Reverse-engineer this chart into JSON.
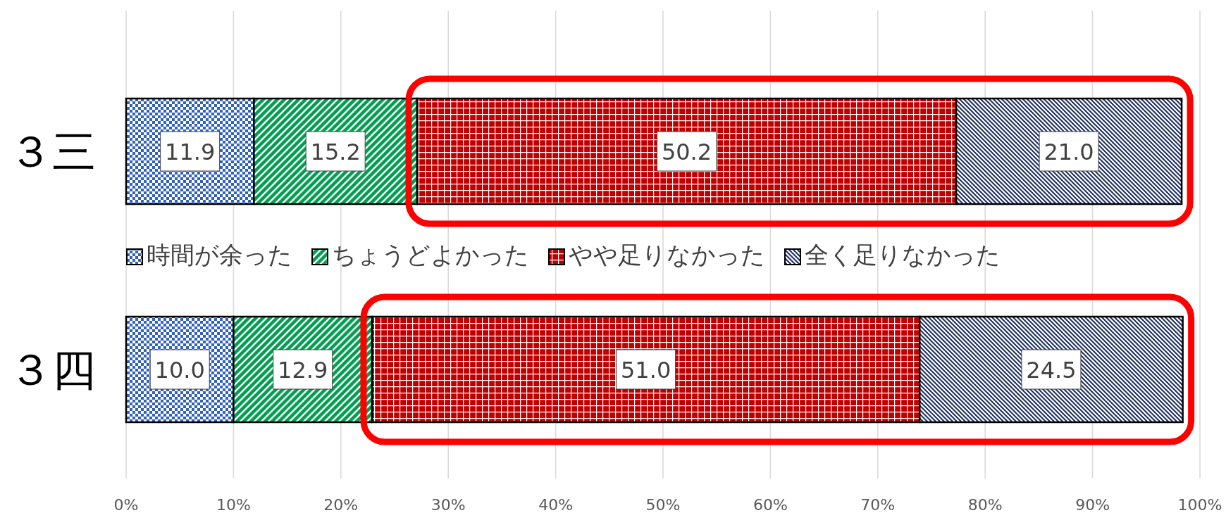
{
  "chart_data": {
    "type": "bar",
    "orientation": "horizontal",
    "stacked": true,
    "categories": [
      "３三",
      "３四"
    ],
    "series": [
      {
        "name": "時間が余った",
        "color": "#3060c0",
        "values": [
          11.9,
          10.0
        ],
        "value_labels": [
          "11.9",
          "10.0"
        ]
      },
      {
        "name": "ちょうどよかった",
        "color": "#00a050",
        "values": [
          15.2,
          12.9
        ],
        "value_labels": [
          "15.2",
          "12.9"
        ]
      },
      {
        "name": "やや足りなかった",
        "color": "#c00000",
        "values": [
          50.2,
          51.0
        ],
        "value_labels": [
          "50.2",
          "51.0"
        ]
      },
      {
        "name": "全く足りなかった",
        "color": "#1f3060",
        "values": [
          21.0,
          24.5
        ],
        "value_labels": [
          "21.0",
          "24.5"
        ]
      }
    ],
    "xlim": [
      0,
      100
    ],
    "xticks": [
      {
        "value": 0,
        "label": "0%"
      },
      {
        "value": 10,
        "label": "10%"
      },
      {
        "value": 20,
        "label": "20%"
      },
      {
        "value": 30,
        "label": "30%"
      },
      {
        "value": 40,
        "label": "40%"
      },
      {
        "value": 50,
        "label": "50%"
      },
      {
        "value": 60,
        "label": "60%"
      },
      {
        "value": 70,
        "label": "70%"
      },
      {
        "value": 80,
        "label": "80%"
      },
      {
        "value": 90,
        "label": "90%"
      },
      {
        "value": 100,
        "label": "100%"
      }
    ],
    "grid": "x",
    "legend": "center"
  }
}
